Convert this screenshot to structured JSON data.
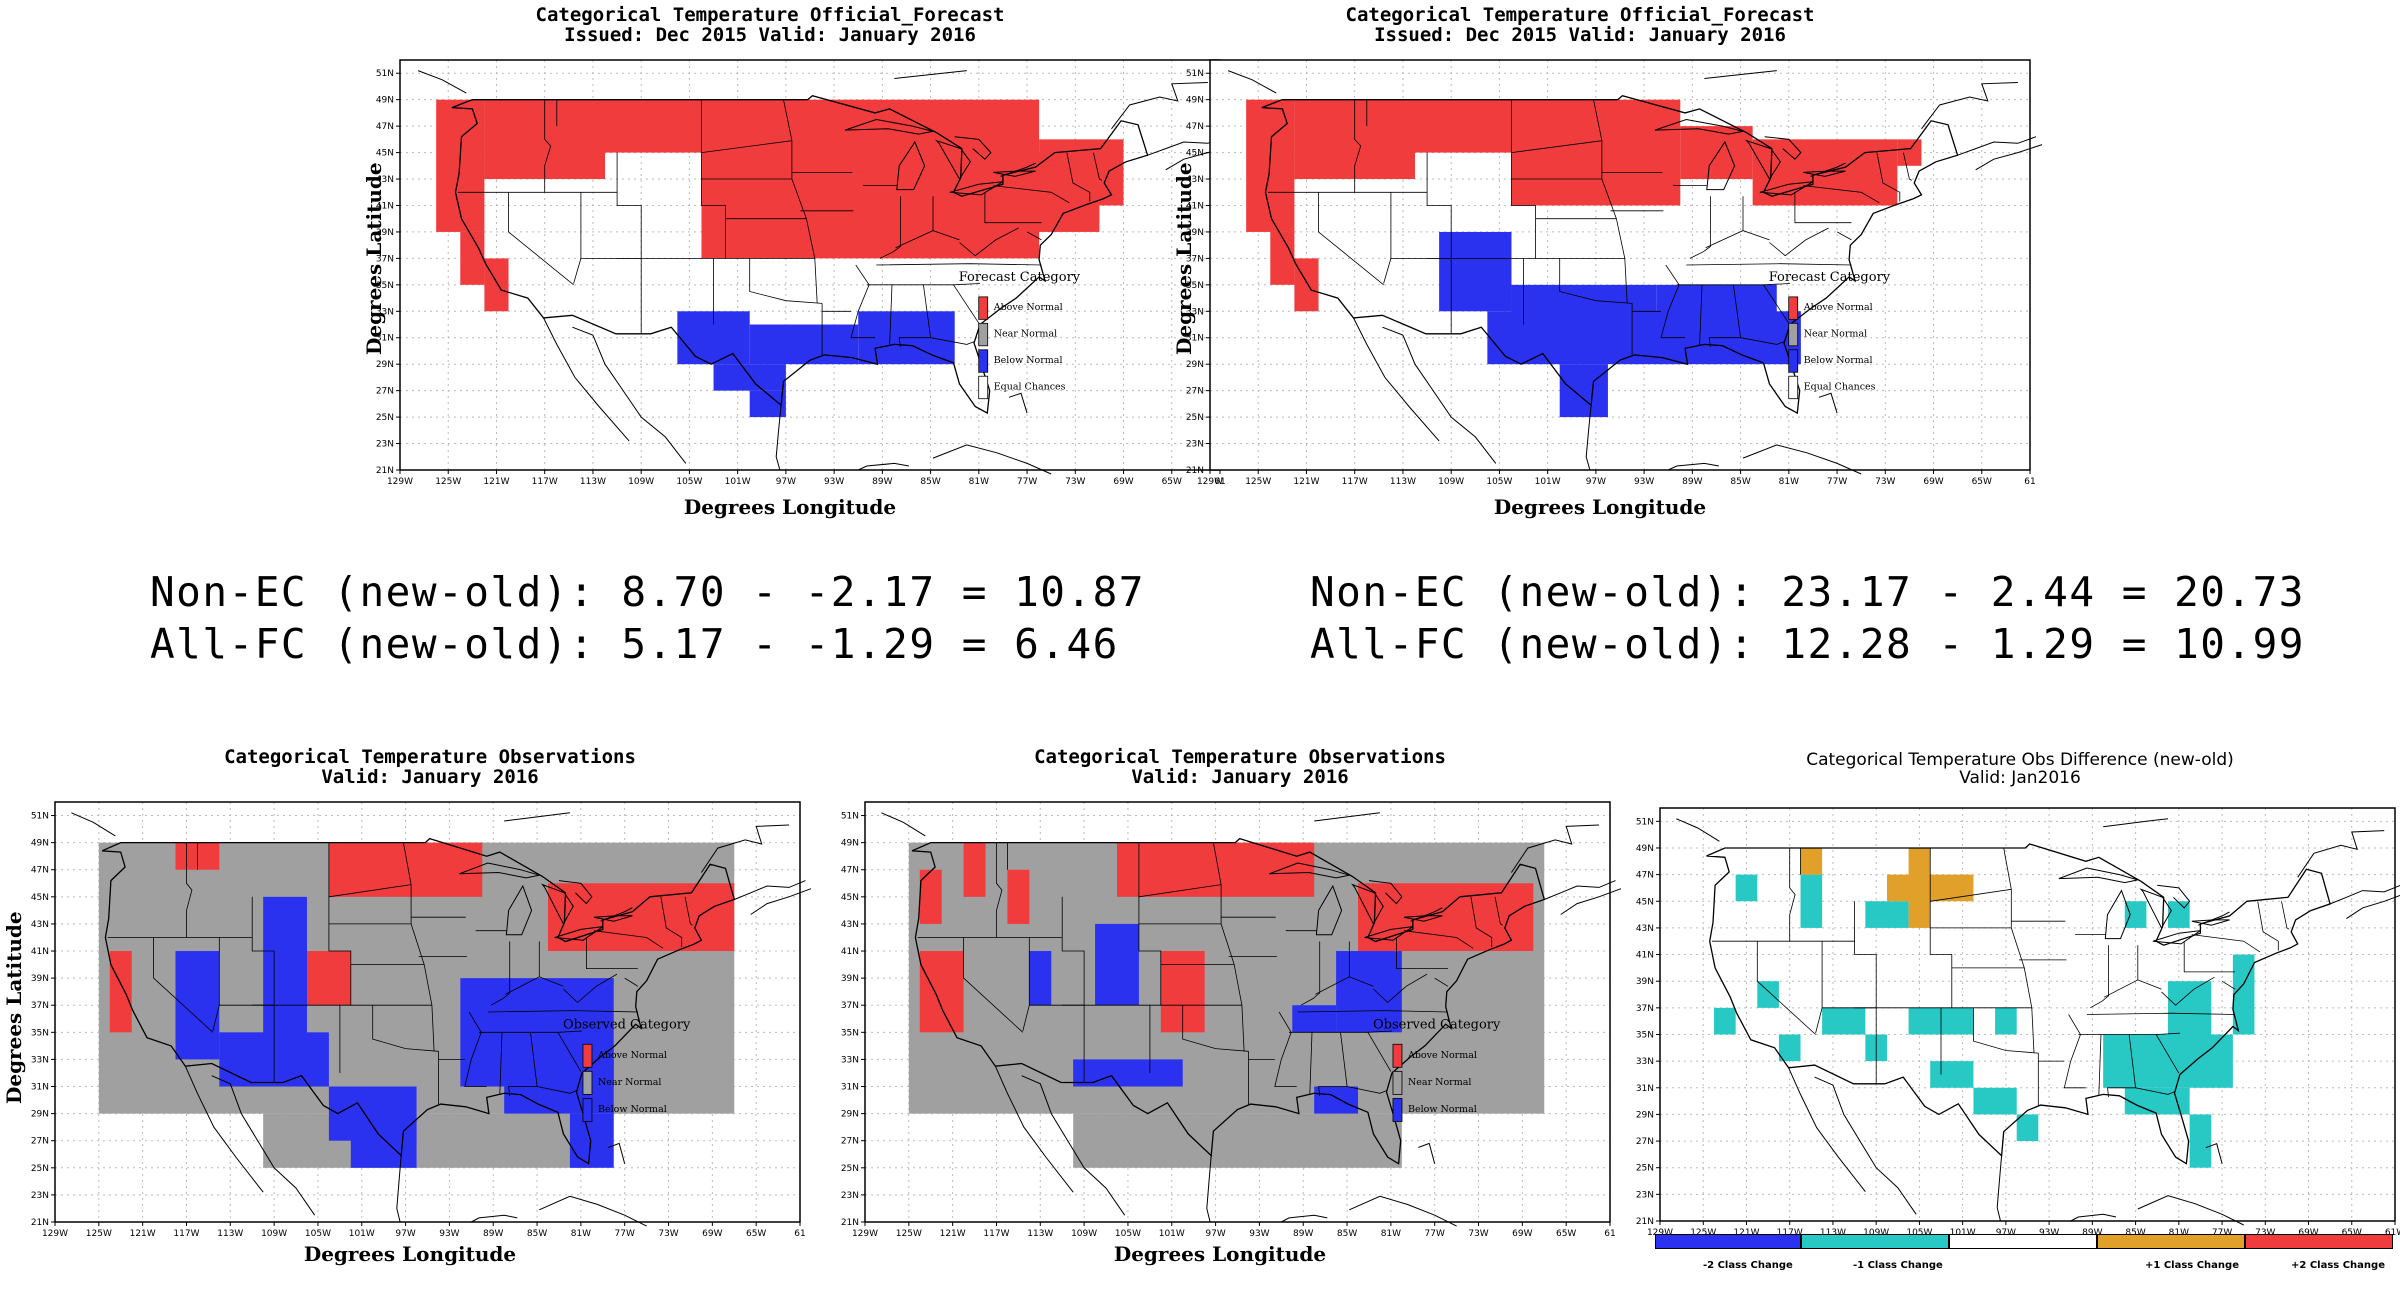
{
  "colors": {
    "above": "#f03c3c",
    "near": "#a0a0a0",
    "below": "#2a32f0",
    "equal": "#ffffff",
    "minus2": "#2a32f0",
    "minus1": "#28c8c4",
    "zero": "#ffffff",
    "plus1": "#e0a02a",
    "plus2": "#f03c3c",
    "grid": "#bbbbbb"
  },
  "lat_ticks": [
    "21N",
    "23N",
    "25N",
    "27N",
    "29N",
    "31N",
    "33N",
    "35N",
    "37N",
    "39N",
    "41N",
    "43N",
    "45N",
    "47N",
    "49N",
    "51N"
  ],
  "lon_ticks_a": [
    "129W",
    "125W",
    "121W",
    "117W",
    "113W",
    "109W",
    "105W",
    "101W",
    "97W",
    "93W",
    "89W",
    "85W",
    "81W",
    "77W",
    "73W",
    "69W",
    "65W",
    "61"
  ],
  "lon_ticks_b": [
    "129W",
    "125W",
    "121W",
    "117W",
    "113W",
    "109W",
    "105W",
    "101W",
    "97W",
    "93W",
    "89W",
    "85W",
    "81W",
    "77W",
    "73W",
    "69W",
    "65W",
    "61W"
  ],
  "axis": {
    "ylabel": "Degrees Latitude",
    "xlabel": "Degrees Longitude"
  },
  "panels": {
    "fc_old": {
      "title1": "Categorical Temperature Official_Forecast",
      "title2": "Issued: Dec 2015 Valid: January 2016",
      "legend_title": "Forecast Category",
      "legend": [
        "Above Normal",
        "Near Normal",
        "Below Normal",
        "Equal Chances"
      ]
    },
    "fc_new": {
      "title1": "Categorical Temperature Official_Forecast",
      "title2": "Issued: Dec 2015 Valid: January 2016",
      "legend_title": "Forecast Category",
      "legend": [
        "Above Normal",
        "Near Normal",
        "Below Normal",
        "Equal Chances"
      ]
    },
    "obs_old": {
      "title1": "Categorical Temperature Observations",
      "title2": "Valid: January 2016",
      "legend_title": "Observed Category",
      "legend": [
        "Above Normal",
        "Near Normal",
        "Below Normal"
      ]
    },
    "obs_new": {
      "title1": "Categorical Temperature Observations",
      "title2": "Valid: January 2016",
      "legend_title": "Observed Category",
      "legend": [
        "Above Normal",
        "Near Normal",
        "Below Normal"
      ]
    },
    "obs_diff": {
      "title1": "Categorical Temperature Obs Difference (new-old)",
      "title2": "Valid: Jan2016",
      "legend": [
        "-2 Class Change",
        "-1 Class Change",
        "+1 Class Change",
        "+2 Class Change"
      ]
    }
  },
  "stats": {
    "left_line1": "Non-EC (new-old): 8.70 - -2.17 = 10.87",
    "left_line2": "All-FC (new-old): 5.17 - -1.29 = 6.46",
    "right_line1": "Non-EC (new-old): 23.17 - 2.44 = 20.73",
    "right_line2": "All-FC (new-old): 12.28 - 1.29 = 10.99"
  },
  "map_data": {
    "fc_old": [
      {
        "cat": "above",
        "cells": [
          [
            -126,
            49,
            -122,
            39
          ],
          [
            -122,
            49,
            -112,
            43
          ],
          [
            -112,
            49,
            -104,
            45
          ],
          [
            -104,
            49,
            -76,
            37
          ],
          [
            -83,
            45,
            -71,
            39
          ],
          [
            -76,
            46,
            -69,
            41
          ],
          [
            -124,
            39,
            -122,
            35
          ],
          [
            -122,
            37,
            -120,
            33
          ]
        ]
      },
      {
        "cat": "below",
        "cells": [
          [
            -106,
            33,
            -100,
            29
          ],
          [
            -100,
            32,
            -91,
            29
          ],
          [
            -91,
            33,
            -83,
            29
          ],
          [
            -103,
            29,
            -97,
            27
          ],
          [
            -100,
            27,
            -97,
            25
          ]
        ]
      }
    ],
    "fc_new": [
      {
        "cat": "above",
        "cells": [
          [
            -126,
            49,
            -122,
            39
          ],
          [
            -122,
            49,
            -112,
            43
          ],
          [
            -112,
            49,
            -104,
            45
          ],
          [
            -104,
            49,
            -90,
            41
          ],
          [
            -90,
            47,
            -84,
            43
          ],
          [
            -84,
            46,
            -72,
            41
          ],
          [
            -72,
            46,
            -70,
            44
          ],
          [
            -124,
            39,
            -122,
            35
          ],
          [
            -122,
            37,
            -120,
            33
          ]
        ]
      },
      {
        "cat": "below",
        "cells": [
          [
            -110,
            39,
            -104,
            33
          ],
          [
            -104,
            35,
            -92,
            31
          ],
          [
            -92,
            35,
            -82,
            31
          ],
          [
            -106,
            33,
            -80,
            29
          ],
          [
            -100,
            29,
            -96,
            25
          ]
        ]
      }
    ],
    "obs_old": [
      {
        "cat": "near",
        "cells": [
          [
            -125,
            49,
            -67,
            29
          ],
          [
            -110,
            29,
            -80,
            25
          ]
        ]
      },
      {
        "cat": "above",
        "cells": [
          [
            -104,
            49,
            -90,
            45
          ],
          [
            -118,
            49,
            -114,
            47
          ],
          [
            -84,
            46,
            -67,
            41
          ],
          [
            -124,
            41,
            -122,
            35
          ],
          [
            -106,
            41,
            -102,
            37
          ]
        ]
      },
      {
        "cat": "below",
        "cells": [
          [
            -118,
            41,
            -114,
            33
          ],
          [
            -110,
            45,
            -106,
            33
          ],
          [
            -114,
            35,
            -104,
            31
          ],
          [
            -104,
            31,
            -96,
            27
          ],
          [
            -92,
            39,
            -78,
            31
          ],
          [
            -88,
            33,
            -78,
            29
          ],
          [
            -82,
            29,
            -78,
            25
          ],
          [
            -102,
            29,
            -96,
            25
          ]
        ]
      }
    ],
    "obs_new": [
      {
        "cat": "near",
        "cells": [
          [
            -125,
            49,
            -67,
            29
          ],
          [
            -110,
            29,
            -80,
            25
          ]
        ]
      },
      {
        "cat": "above",
        "cells": [
          [
            -106,
            49,
            -88,
            45
          ],
          [
            -124,
            47,
            -122,
            43
          ],
          [
            -120,
            49,
            -118,
            45
          ],
          [
            -116,
            47,
            -114,
            43
          ],
          [
            -124,
            41,
            -120,
            35
          ],
          [
            -102,
            41,
            -98,
            35
          ],
          [
            -84,
            46,
            -68,
            41
          ]
        ]
      },
      {
        "cat": "below",
        "cells": [
          [
            -114,
            41,
            -112,
            37
          ],
          [
            -108,
            43,
            -104,
            37
          ],
          [
            -110,
            33,
            -100,
            31
          ],
          [
            -86,
            41,
            -80,
            35
          ],
          [
            -90,
            37,
            -86,
            35
          ],
          [
            -88,
            31,
            -84,
            29
          ]
        ]
      }
    ],
    "obs_diff": [
      {
        "cat": "minus1",
        "cells": [
          [
            -122,
            47,
            -120,
            45
          ],
          [
            -116,
            47,
            -114,
            43
          ],
          [
            -110,
            45,
            -106,
            43
          ],
          [
            -120,
            39,
            -118,
            37
          ],
          [
            -124,
            37,
            -122,
            35
          ],
          [
            -114,
            37,
            -110,
            35
          ],
          [
            -106,
            37,
            -100,
            35
          ],
          [
            -98,
            37,
            -96,
            35
          ],
          [
            -118,
            35,
            -116,
            33
          ],
          [
            -110,
            35,
            -108,
            33
          ],
          [
            -104,
            33,
            -100,
            31
          ],
          [
            -100,
            31,
            -96,
            29
          ],
          [
            -96,
            29,
            -94,
            27
          ],
          [
            -86,
            45,
            -84,
            43
          ],
          [
            -82,
            45,
            -80,
            43
          ],
          [
            -88,
            35,
            -76,
            31
          ],
          [
            -86,
            31,
            -80,
            29
          ],
          [
            -80,
            29,
            -78,
            25
          ],
          [
            -82,
            39,
            -78,
            35
          ],
          [
            -76,
            41,
            -74,
            35
          ]
        ]
      },
      {
        "cat": "plus1",
        "cells": [
          [
            -116,
            49,
            -114,
            47
          ],
          [
            -108,
            47,
            -100,
            45
          ],
          [
            -106,
            49,
            -104,
            43
          ]
        ]
      }
    ]
  }
}
